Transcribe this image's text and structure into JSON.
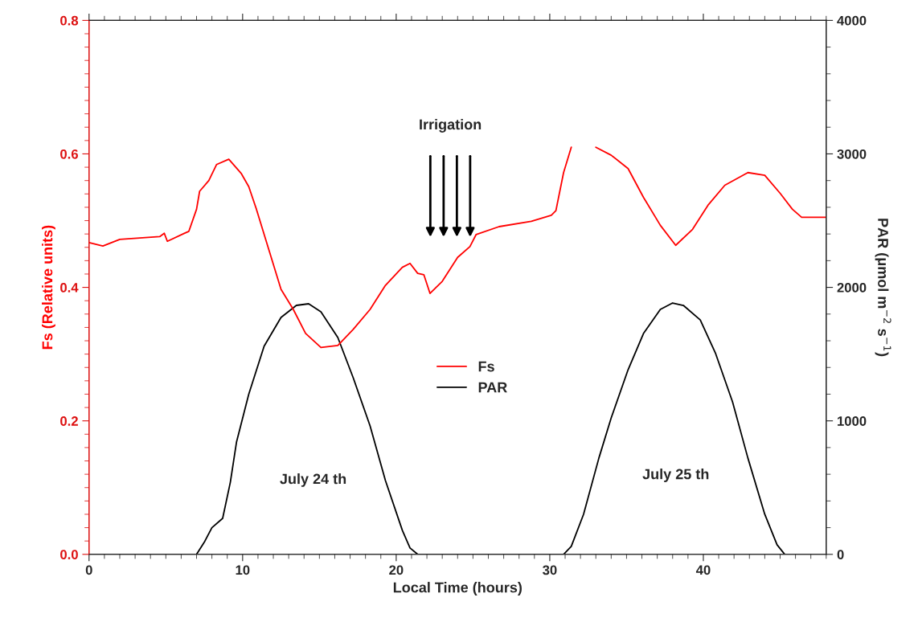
{
  "chart_data": {
    "type": "line",
    "xlabel": "Local Time (hours)",
    "ylabel": "Fs (Relative units)",
    "y2label": "PAR (μmol m$^{−2}$ s$^{−1}$)",
    "xlim": [
      0,
      48
    ],
    "xticks": [
      0,
      10,
      20,
      30,
      40
    ],
    "ylim": [
      0,
      0.8
    ],
    "yticks": [
      {
        "value": 0,
        "label": "0.0"
      },
      {
        "value": 0.2,
        "label": "0.2"
      },
      {
        "value": 0.4,
        "label": "0.4"
      },
      {
        "value": 0.6,
        "label": "0.6"
      },
      {
        "value": 0.8,
        "label": "0.8"
      }
    ],
    "y2lim": [
      0,
      4000
    ],
    "y2ticks": [
      0,
      1000,
      2000,
      3000,
      4000
    ],
    "legend": "center",
    "line_style": "solid",
    "marker": "none",
    "grid": false,
    "series": [
      {
        "name": "Fs",
        "color": "#ff0000",
        "x": [
          0,
          0.9,
          2.0,
          4.6,
          4.9,
          5.1,
          6.2,
          6.5,
          7.0,
          7.2,
          7.8,
          8.3,
          9.1,
          9.9,
          10.4,
          10.9,
          11.7,
          12.5,
          13.3,
          14.1,
          15.1,
          16.2,
          17.2,
          18.3,
          19.3,
          20.4,
          20.9,
          21.4,
          21.8,
          22.2,
          23.0,
          24.0,
          24.8,
          25.2,
          26.7,
          28.8,
          30.1,
          30.4,
          30.9,
          31.4,
          32.2,
          33.0,
          34.0,
          35.1,
          36.1,
          37.2,
          38.2,
          39.3,
          40.3,
          41.4,
          42.9,
          44.0,
          45.0,
          45.8,
          46.4,
          48
        ],
        "values": [
          0.467,
          0.462,
          0.472,
          0.476,
          0.481,
          0.469,
          0.481,
          0.484,
          0.517,
          0.544,
          0.56,
          0.584,
          0.592,
          0.571,
          0.551,
          0.517,
          0.457,
          0.397,
          0.367,
          0.331,
          0.31,
          0.313,
          0.337,
          0.367,
          0.403,
          0.43,
          0.436,
          0.421,
          0.419,
          0.391,
          0.409,
          0.445,
          0.461,
          0.479,
          0.491,
          0.499,
          0.508,
          0.515,
          0.572,
          0.61,
          null,
          0.61,
          0.598,
          0.578,
          0.535,
          0.493,
          0.463,
          0.487,
          0.523,
          0.553,
          0.572,
          0.568,
          0.541,
          0.517,
          0.505,
          0.505
        ]
      },
      {
        "name": "PAR",
        "color": "#000000",
        "axis": "y2",
        "x": [
          0,
          7.0,
          7.5,
          8.0,
          8.7,
          9.2,
          9.6,
          10.4,
          11.4,
          12.5,
          13.5,
          14.3,
          15.1,
          16.2,
          17.2,
          18.3,
          19.3,
          20.4,
          20.9,
          21.4,
          30.9,
          31.4,
          32.2,
          33.2,
          34.0,
          35.1,
          36.1,
          37.2,
          38.0,
          38.7,
          39.8,
          40.8,
          41.9,
          42.9,
          44.0,
          44.8,
          45.3
        ],
        "values": [
          0,
          0,
          90,
          200,
          270,
          540,
          840,
          1200,
          1560,
          1775,
          1865,
          1877,
          1817,
          1624,
          1323,
          962,
          553,
          180,
          48,
          0,
          0,
          60,
          300,
          722,
          1022,
          1383,
          1654,
          1835,
          1883,
          1865,
          1756,
          1504,
          1143,
          722,
          300,
          72,
          0
        ]
      }
    ],
    "annotations": [
      "Irrigation",
      "July 24 th",
      "July 25 th"
    ]
  }
}
